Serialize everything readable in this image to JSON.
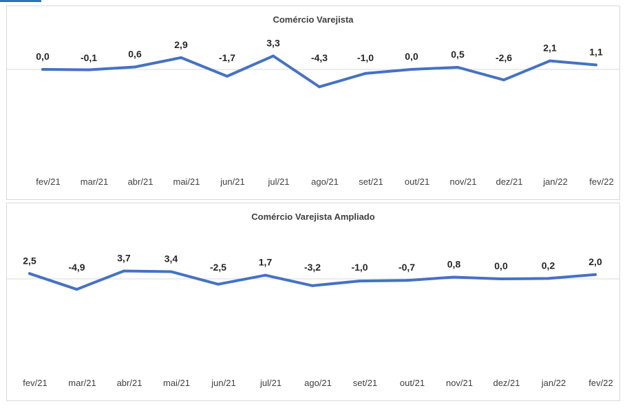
{
  "colors": {
    "line": "#4472c4",
    "axis": "#d9d9d9",
    "corner": "#2e75b6"
  },
  "chart_data": [
    {
      "type": "line",
      "title": "Comércio Varejista",
      "categories": [
        "fev/21",
        "mar/21",
        "abr/21",
        "mai/21",
        "jun/21",
        "jul/21",
        "ago/21",
        "set/21",
        "out/21",
        "nov/21",
        "dez/21",
        "jan/22",
        "fev/22"
      ],
      "values": [
        0.0,
        -0.1,
        0.6,
        2.9,
        -1.7,
        3.3,
        -4.3,
        -1.0,
        0.0,
        0.5,
        -2.6,
        2.1,
        1.1
      ],
      "value_labels": [
        "0,0",
        "-0,1",
        "0,6",
        "2,9",
        "-1,7",
        "3,3",
        "-4,3",
        "-1,0",
        "0,0",
        "0,5",
        "-2,6",
        "2,1",
        "1,1"
      ],
      "legend": "none",
      "grid": false
    },
    {
      "type": "line",
      "title": "Comércio Varejista Ampliado",
      "categories": [
        "fev/21",
        "mar/21",
        "abr/21",
        "mai/21",
        "jun/21",
        "jul/21",
        "ago/21",
        "set/21",
        "out/21",
        "nov/21",
        "dez/21",
        "jan/22",
        "fev/22"
      ],
      "values": [
        2.5,
        -4.9,
        3.7,
        3.4,
        -2.5,
        1.7,
        -3.2,
        -1.0,
        -0.7,
        0.8,
        0.0,
        0.2,
        2.0
      ],
      "value_labels": [
        "2,5",
        "-4,9",
        "3,7",
        "3,4",
        "-2,5",
        "1,7",
        "-3,2",
        "-1,0",
        "-0,7",
        "0,8",
        "0,0",
        "0,2",
        "2,0"
      ],
      "legend": "none",
      "grid": false
    }
  ]
}
